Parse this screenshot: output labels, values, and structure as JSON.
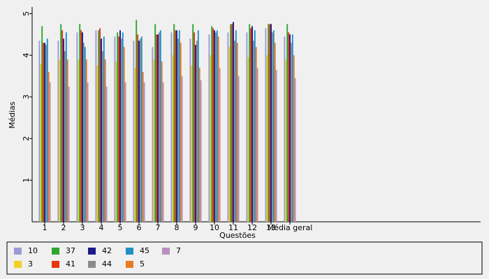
{
  "chart_data": {
    "type": "bar",
    "y_label": "Médias",
    "x_label": "Questões",
    "categories": [
      "1",
      "2",
      "3",
      "4",
      "5",
      "6",
      "7",
      "8",
      "9",
      "10",
      "11",
      "12",
      "13",
      "Média geral"
    ],
    "series": [
      {
        "name": "10",
        "color": "#9a9ad6",
        "values": [
          4.35,
          4.35,
          4.55,
          4.6,
          4.45,
          4.35,
          4.2,
          4.55,
          4.4,
          4.5,
          4.55,
          4.55,
          4.65,
          4.45
        ]
      },
      {
        "name": "3",
        "color": "#f2d024",
        "values": [
          3.8,
          3.9,
          3.9,
          3.75,
          3.85,
          3.7,
          3.9,
          4.0,
          3.75,
          4.0,
          4.2,
          3.95,
          4.0,
          3.9
        ]
      },
      {
        "name": "37",
        "color": "#2fa52f",
        "values": [
          4.7,
          4.75,
          4.75,
          4.6,
          4.55,
          4.85,
          4.75,
          4.75,
          4.75,
          4.7,
          4.75,
          4.75,
          4.75,
          4.75
        ]
      },
      {
        "name": "41",
        "color": "#e8350f",
        "values": [
          4.3,
          4.6,
          4.6,
          4.65,
          4.45,
          4.5,
          4.5,
          4.6,
          4.55,
          4.65,
          4.75,
          4.65,
          4.75,
          4.55
        ]
      },
      {
        "name": "42",
        "color": "#1a1a8c",
        "values": [
          4.3,
          4.4,
          4.55,
          4.4,
          4.6,
          4.35,
          4.5,
          4.6,
          4.25,
          4.6,
          4.8,
          4.7,
          4.75,
          4.5
        ]
      },
      {
        "name": "44",
        "color": "#8c8c8c",
        "values": [
          4.25,
          4.1,
          4.3,
          4.1,
          4.4,
          4.4,
          4.55,
          4.4,
          4.35,
          4.55,
          4.35,
          4.35,
          4.55,
          4.3
        ]
      },
      {
        "name": "45",
        "color": "#1f8fc8",
        "values": [
          4.4,
          4.55,
          4.2,
          4.45,
          4.55,
          4.45,
          4.6,
          4.6,
          4.6,
          4.6,
          4.6,
          4.6,
          4.6,
          4.5
        ]
      },
      {
        "name": "5",
        "color": "#e87b20",
        "values": [
          3.6,
          3.9,
          3.9,
          3.9,
          4.2,
          3.6,
          3.85,
          4.3,
          3.7,
          4.45,
          4.3,
          4.2,
          4.3,
          4.0
        ]
      },
      {
        "name": "7",
        "color": "#b98fc0",
        "values": [
          3.35,
          3.25,
          3.35,
          3.25,
          3.35,
          3.35,
          3.35,
          3.5,
          3.4,
          3.7,
          3.5,
          3.7,
          3.65,
          3.45
        ]
      }
    ],
    "ylim": [
      0,
      5.16
    ],
    "yticks": [
      1,
      2,
      3,
      4,
      5
    ]
  }
}
